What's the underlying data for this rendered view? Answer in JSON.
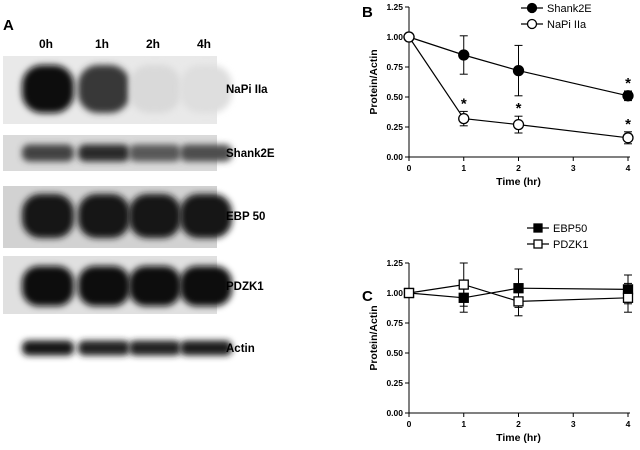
{
  "panel_a": {
    "letter": "A",
    "lanes": [
      "0h",
      "1h",
      "2h",
      "4h"
    ],
    "blots": [
      {
        "label": "NaPi IIa",
        "intensity": [
          1.0,
          0.8,
          0.08,
          0.06
        ]
      },
      {
        "label": "Shank2E",
        "intensity": [
          0.75,
          0.85,
          0.65,
          0.7
        ]
      },
      {
        "label": "EBP 50",
        "intensity": [
          0.95,
          0.95,
          0.95,
          0.95
        ]
      },
      {
        "label": "PDZK1",
        "intensity": [
          1.0,
          1.0,
          1.0,
          1.0
        ]
      },
      {
        "label": "Actin",
        "intensity": [
          0.95,
          0.9,
          0.9,
          0.92
        ]
      }
    ]
  },
  "chart_data": [
    {
      "panel": "B",
      "type": "line",
      "xlabel": "Time (hr)",
      "ylabel": "Protein/Actin",
      "xlim": [
        0,
        4
      ],
      "ylim": [
        0,
        1.25
      ],
      "xticks": [
        "0",
        "1",
        "2",
        "3",
        "4"
      ],
      "yticks": [
        "0.00",
        "0.25",
        "0.50",
        "0.75",
        "1.00",
        "1.25"
      ],
      "legend_position": "top-right",
      "series": [
        {
          "name": "Shank2E",
          "marker": "filled-circle",
          "x": [
            0,
            1,
            2,
            4
          ],
          "y": [
            1.0,
            0.85,
            0.72,
            0.51
          ],
          "err": [
            0,
            0.16,
            0.21,
            0.04
          ],
          "significant": [
            false,
            false,
            false,
            true
          ]
        },
        {
          "name": "NaPi IIa",
          "marker": "open-circle",
          "x": [
            0,
            1,
            2,
            4
          ],
          "y": [
            1.0,
            0.32,
            0.27,
            0.16
          ],
          "err": [
            0,
            0.06,
            0.07,
            0.05
          ],
          "significant": [
            false,
            true,
            true,
            true
          ]
        }
      ]
    },
    {
      "panel": "C",
      "type": "line",
      "xlabel": "Time (hr)",
      "ylabel": "Protein/Actin",
      "xlim": [
        0,
        4
      ],
      "ylim": [
        0,
        1.25
      ],
      "xticks": [
        "0",
        "1",
        "2",
        "3",
        "4"
      ],
      "yticks": [
        "0.00",
        "0.25",
        "0.50",
        "0.75",
        "1.00",
        "1.25"
      ],
      "legend_position": "top-right",
      "series": [
        {
          "name": "EBP50",
          "marker": "filled-square",
          "x": [
            0,
            1,
            2,
            4
          ],
          "y": [
            1.0,
            0.96,
            1.04,
            1.03
          ],
          "err": [
            0,
            0.12,
            0.16,
            0.12
          ],
          "significant": [
            false,
            false,
            false,
            false
          ]
        },
        {
          "name": "PDZK1",
          "marker": "open-square",
          "x": [
            0,
            1,
            2,
            4
          ],
          "y": [
            1.0,
            1.07,
            0.93,
            0.96
          ],
          "err": [
            0,
            0.18,
            0.12,
            0.12
          ],
          "significant": [
            false,
            false,
            false,
            false
          ]
        }
      ]
    }
  ],
  "significance_symbol": "*"
}
